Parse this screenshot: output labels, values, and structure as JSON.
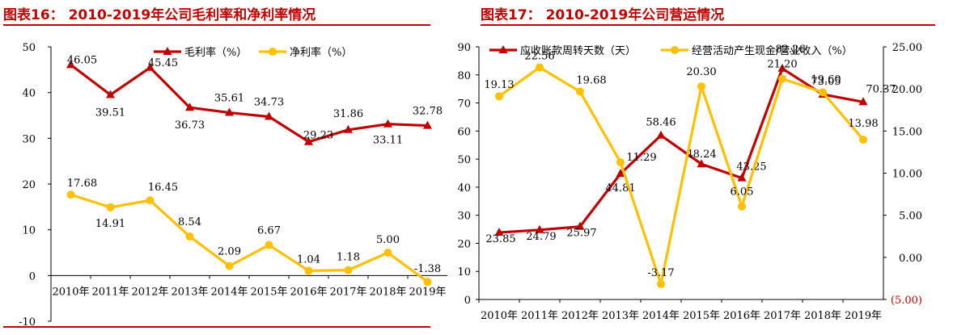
{
  "charts": [
    {
      "title": "图表16： 2010-2019年公司毛利率和净利率情况"
    },
    {
      "title": "图表17： 2010-2019年公司营运情况"
    }
  ],
  "chart_data": [
    {
      "type": "line",
      "title": "图表16： 2010-2019年公司毛利率和净利率情况",
      "categories": [
        "2010年",
        "2011年",
        "2012年",
        "2013年",
        "2014年",
        "2015年",
        "2016年",
        "2017年",
        "2018年",
        "2019年"
      ],
      "ylim": [
        -10,
        50
      ],
      "yticks": [
        -10,
        0,
        10,
        20,
        30,
        40,
        50
      ],
      "ytick_labels": [
        "-10",
        "0",
        "10",
        "20",
        "30",
        "40",
        "50"
      ],
      "legend_position": "top-center",
      "series": [
        {
          "name": "毛利率（%）",
          "color": "#c00000",
          "marker": "triangle",
          "values": [
            46.05,
            39.51,
            45.45,
            36.73,
            35.61,
            34.73,
            29.23,
            31.86,
            33.11,
            32.78
          ],
          "labels": [
            "46.05",
            "39.51",
            "45.45",
            "36.73",
            "35.61",
            "34.73",
            "29.23",
            "31.86",
            "33.11",
            "32.78"
          ]
        },
        {
          "name": "净利率（%）",
          "color": "#ffc000",
          "marker": "circle",
          "values": [
            17.68,
            14.91,
            16.45,
            8.54,
            2.09,
            6.67,
            1.04,
            1.18,
            5.0,
            -1.38
          ],
          "labels": [
            "17.68",
            "14.91",
            "16.45",
            "8.54",
            "2.09",
            "6.67",
            "1.04",
            "1.18",
            "5.00",
            "-1.38"
          ]
        }
      ]
    },
    {
      "type": "line",
      "title": "图表17： 2010-2019年公司营运情况",
      "categories": [
        "2010年",
        "2011年",
        "2012年",
        "2013年",
        "2014年",
        "2015年",
        "2016年",
        "2017年",
        "2018年",
        "2019年"
      ],
      "ylim": [
        0,
        90
      ],
      "yticks": [
        0,
        10,
        20,
        30,
        40,
        50,
        60,
        70,
        80,
        90
      ],
      "ytick_labels": [
        "0",
        "10",
        "20",
        "30",
        "40",
        "50",
        "60",
        "70",
        "80",
        "90"
      ],
      "y2lim": [
        -5,
        25
      ],
      "y2ticks": [
        -5,
        0,
        5,
        10,
        15,
        20,
        25
      ],
      "y2tick_labels": [
        "(5.00)",
        "0.00",
        "5.00",
        "10.00",
        "15.00",
        "20.00",
        "25.00"
      ],
      "legend_position": "top-center",
      "series": [
        {
          "name": "应收账款周转天数（天）",
          "color": "#c00000",
          "marker": "triangle",
          "axis": "left",
          "values": [
            23.85,
            24.79,
            25.97,
            44.81,
            58.46,
            48.24,
            43.25,
            82.26,
            73.05,
            70.37
          ],
          "labels": [
            "23.85",
            "24.79",
            "25.97",
            "44.81",
            "58.46",
            "48.24",
            "43.25",
            "82.26",
            "73.05",
            "70.37"
          ]
        },
        {
          "name": "经营活动产生现金/营业收入（%）",
          "color": "#ffc000",
          "marker": "circle",
          "axis": "right",
          "values": [
            19.13,
            22.56,
            19.68,
            11.29,
            -3.17,
            20.3,
            6.05,
            21.2,
            19.6,
            13.98
          ],
          "labels": [
            "19.13",
            "22.56",
            "19.68",
            "11.29",
            "-3.17",
            "20.30",
            "6.05",
            "21.20",
            "19.60",
            "13.98"
          ]
        }
      ]
    }
  ]
}
